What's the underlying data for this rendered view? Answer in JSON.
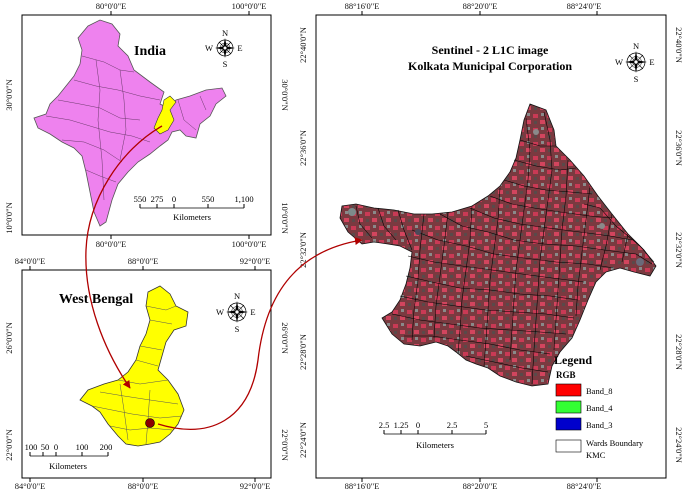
{
  "india_panel": {
    "title": "India",
    "top_ticks": [
      "80°0'0\"E",
      "100°0'0\"E"
    ],
    "bottom_ticks": [
      "80°0'0\"E",
      "100°0'0\"E"
    ],
    "left_ticks": [
      "30°0'0\"N",
      "10°0'0\"N"
    ],
    "right_ticks": [
      "30°0'0\"N",
      "10°0'0\"N"
    ],
    "scale_labels": [
      "550",
      "275",
      "0",
      "550",
      "1,100"
    ],
    "scale_unit": "Kilometers",
    "fill_color": "#ee82ee",
    "highlight_color": "#ffff00"
  },
  "wb_panel": {
    "title": "West Bengal",
    "top_ticks": [
      "84°0'0\"E",
      "88°0'0\"E",
      "92°0'0\"E"
    ],
    "bottom_ticks": [
      "84°0'0\"E",
      "88°0'0\"E",
      "92°0'0\"E"
    ],
    "left_ticks": [
      "26°0'0\"N",
      "22°0'0\"N"
    ],
    "right_ticks": [
      "26°0'0\"N",
      "22°0'0\"N"
    ],
    "scale_labels": [
      "100",
      "50",
      "0",
      "100",
      "200"
    ],
    "scale_unit": "Kilometers",
    "fill_color": "#ffff00"
  },
  "kmc_panel": {
    "title_line1": "Sentinel - 2 L1C image",
    "title_line2": "Kolkata Municipal Corporation",
    "top_ticks": [
      "88°16'0\"E",
      "88°20'0\"E",
      "88°24'0\"E"
    ],
    "bottom_ticks": [
      "88°16'0\"E",
      "88°20'0\"E",
      "88°24'0\"E"
    ],
    "left_ticks": [
      "22°40'0\"N",
      "22°36'0\"N",
      "22°32'0\"N",
      "22°28'0\"N",
      "22°24'0\"N"
    ],
    "right_ticks": [
      "22°40'0\"N",
      "22°36'0\"N",
      "22°32'0\"N",
      "22°28'0\"N",
      "22°24'0\"N"
    ],
    "scale_labels": [
      "2.5",
      "1.25",
      "0",
      "2.5",
      "5"
    ],
    "scale_unit": "Kilometers",
    "legend": {
      "title": "Legend",
      "subtitle": "RGB",
      "items": [
        {
          "label": "Band_8",
          "color": "#ff0000"
        },
        {
          "label": "Band_4",
          "color": "#33ff33"
        },
        {
          "label": "Band_3",
          "color": "#0000cc"
        },
        {
          "label": "Wards Boundary\nKMC",
          "color": "#ffffff"
        }
      ]
    }
  },
  "compass": {
    "n": "N",
    "s": "S",
    "e": "E",
    "w": "W"
  },
  "arrow_color": "#b00000"
}
